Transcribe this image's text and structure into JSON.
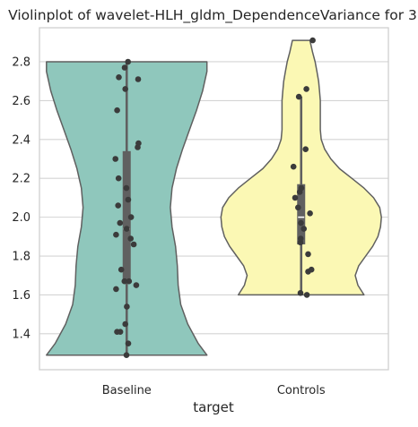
{
  "chart_data": {
    "type": "violin",
    "title": "Violinplot of wavelet-HLH_gldm_DependenceVariance for 3",
    "xlabel": "target",
    "ylabel": "",
    "categories": [
      "Baseline",
      "Controls"
    ],
    "ylim": [
      1.215,
      2.975
    ],
    "yticks": [
      1.4,
      1.6,
      1.8,
      2.0,
      2.2,
      2.4,
      2.6,
      2.8
    ],
    "ytick_labels": [
      "1.4",
      "1.6",
      "1.8",
      "2.0",
      "2.2",
      "2.4",
      "2.6",
      "2.8"
    ],
    "grid": "horizontal",
    "colors": {
      "Baseline": "#8fc7bc",
      "Controls": "#fbf8b4"
    },
    "violins": [
      {
        "category": "Baseline",
        "range": [
          1.29,
          2.8
        ],
        "box": {
          "whisker_low": 1.29,
          "q1": 1.66,
          "median": 1.94,
          "q3": 2.34,
          "whisker_high": 2.8
        },
        "profile": [
          [
            1.29,
            0.92
          ],
          [
            1.35,
            0.82
          ],
          [
            1.45,
            0.7
          ],
          [
            1.55,
            0.62
          ],
          [
            1.65,
            0.59
          ],
          [
            1.75,
            0.58
          ],
          [
            1.85,
            0.56
          ],
          [
            1.95,
            0.52
          ],
          [
            2.05,
            0.5
          ],
          [
            2.15,
            0.52
          ],
          [
            2.25,
            0.57
          ],
          [
            2.35,
            0.64
          ],
          [
            2.45,
            0.72
          ],
          [
            2.55,
            0.8
          ],
          [
            2.65,
            0.87
          ],
          [
            2.75,
            0.92
          ],
          [
            2.8,
            0.92
          ]
        ],
        "points": [
          1.29,
          1.35,
          1.41,
          1.41,
          1.45,
          1.54,
          1.63,
          1.65,
          1.67,
          1.67,
          1.73,
          1.86,
          1.89,
          1.91,
          1.94,
          1.97,
          2.0,
          2.06,
          2.09,
          2.15,
          2.2,
          2.3,
          2.36,
          2.38,
          2.55,
          2.66,
          2.71,
          2.72,
          2.77,
          2.8
        ]
      },
      {
        "category": "Controls",
        "range": [
          1.6,
          2.91
        ],
        "box": {
          "whisker_low": 1.6,
          "q1": 1.86,
          "median": 2.0,
          "q3": 2.17,
          "whisker_high": 2.62
        },
        "profile": [
          [
            1.6,
            0.72
          ],
          [
            1.65,
            0.65
          ],
          [
            1.7,
            0.62
          ],
          [
            1.75,
            0.66
          ],
          [
            1.8,
            0.74
          ],
          [
            1.85,
            0.82
          ],
          [
            1.9,
            0.88
          ],
          [
            1.95,
            0.91
          ],
          [
            2.0,
            0.92
          ],
          [
            2.05,
            0.9
          ],
          [
            2.1,
            0.83
          ],
          [
            2.15,
            0.72
          ],
          [
            2.2,
            0.58
          ],
          [
            2.25,
            0.44
          ],
          [
            2.3,
            0.34
          ],
          [
            2.35,
            0.27
          ],
          [
            2.4,
            0.23
          ],
          [
            2.45,
            0.22
          ],
          [
            2.5,
            0.22
          ],
          [
            2.55,
            0.22
          ],
          [
            2.6,
            0.22
          ],
          [
            2.65,
            0.21
          ],
          [
            2.7,
            0.2
          ],
          [
            2.75,
            0.18
          ],
          [
            2.8,
            0.16
          ],
          [
            2.85,
            0.13
          ],
          [
            2.91,
            0.1
          ]
        ],
        "points": [
          1.6,
          1.61,
          1.72,
          1.73,
          1.81,
          1.87,
          1.89,
          1.94,
          1.97,
          2.02,
          2.05,
          2.1,
          2.13,
          2.15,
          2.26,
          2.35,
          2.62,
          2.66,
          2.91
        ]
      }
    ]
  }
}
